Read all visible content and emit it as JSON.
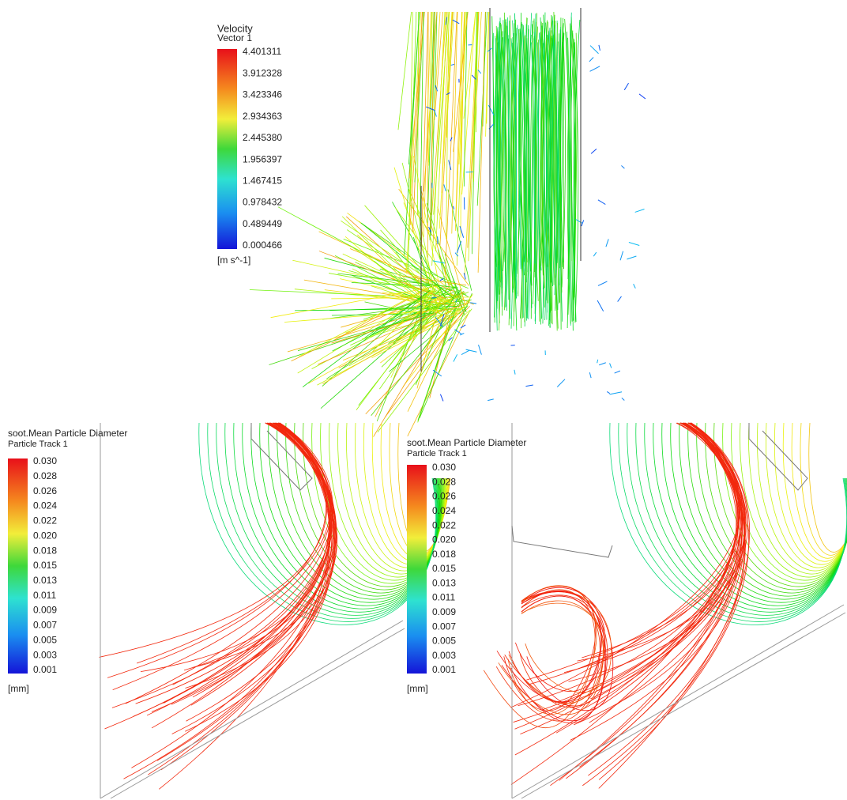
{
  "panels": [
    {
      "legend": {
        "title": "Velocity",
        "subtitle": "Vector 1",
        "ticks": [
          "4.401311",
          "3.912328",
          "3.423346",
          "2.934363",
          "2.445380",
          "1.956397",
          "1.467415",
          "0.978432",
          "0.489449",
          "0.000466"
        ],
        "units": "[m s^-1]"
      }
    },
    {
      "legend": {
        "title": "soot.Mean Particle Diameter",
        "subtitle": "Particle Track 1",
        "ticks": [
          "0.030",
          "0.028",
          "0.026",
          "0.024",
          "0.022",
          "0.020",
          "0.018",
          "0.015",
          "0.013",
          "0.011",
          "0.009",
          "0.007",
          "0.005",
          "0.003",
          "0.001"
        ],
        "units": "[mm]"
      }
    },
    {
      "legend": {
        "title": "soot.Mean Particle Diameter",
        "subtitle": "Particle Track 1",
        "ticks": [
          "0.030",
          "0.028",
          "0.026",
          "0.024",
          "0.022",
          "0.020",
          "0.018",
          "0.015",
          "0.013",
          "0.011",
          "0.009",
          "0.007",
          "0.005",
          "0.003",
          "0.001"
        ],
        "units": "[mm]"
      }
    }
  ]
}
